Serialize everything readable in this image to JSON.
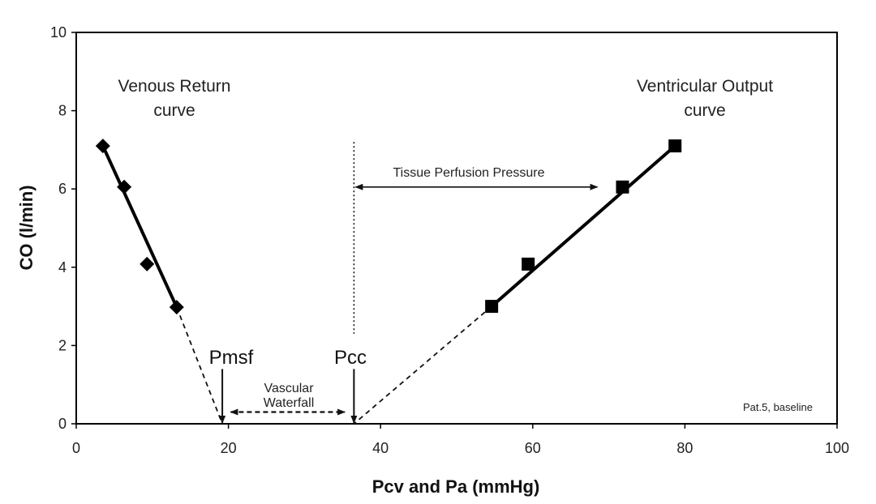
{
  "chart_data": {
    "type": "scatter",
    "title": "",
    "xlabel": "Pcv and Pa (mmHg)",
    "ylabel": "CO (l/min)",
    "xlim": [
      0,
      100
    ],
    "ylim": [
      0,
      10
    ],
    "xticks": [
      0,
      20,
      40,
      60,
      80,
      100
    ],
    "yticks": [
      0,
      2,
      4,
      6,
      8,
      10
    ],
    "grid": false,
    "series": [
      {
        "name": "Venous Return curve",
        "marker": "diamond",
        "points": [
          [
            3.5,
            7.1
          ],
          [
            6.3,
            6.05
          ],
          [
            9.3,
            4.08
          ],
          [
            13.2,
            2.98
          ]
        ],
        "extrapolation_to": [
          19.2,
          0
        ]
      },
      {
        "name": "Ventricular Output curve",
        "marker": "square",
        "points": [
          [
            54.6,
            3.0
          ],
          [
            59.4,
            4.08
          ],
          [
            71.8,
            6.05
          ],
          [
            78.7,
            7.1
          ]
        ],
        "extrapolation_to": [
          36.5,
          0
        ]
      }
    ],
    "pmsf_x": 19.2,
    "pcc_x": 36.5,
    "tpp_arrow": {
      "y": 6.05,
      "x_start": 36.5,
      "x_end": 68.5
    },
    "waterfall_arrow": {
      "y": 0.3,
      "x_start": 20.3,
      "x_end": 35.3
    },
    "annotations": {
      "venous_line1": "Venous Return",
      "venous_line2": "curve",
      "ventricular_line1": "Ventricular Output",
      "ventricular_line2": "curve",
      "tissue_perfusion": "Tissue Perfusion Pressure",
      "pmsf": "Pmsf",
      "pcc": "Pcc",
      "waterfall_line1": "Vascular",
      "waterfall_line2": "Waterfall",
      "patient": "Pat.5, baseline"
    }
  }
}
